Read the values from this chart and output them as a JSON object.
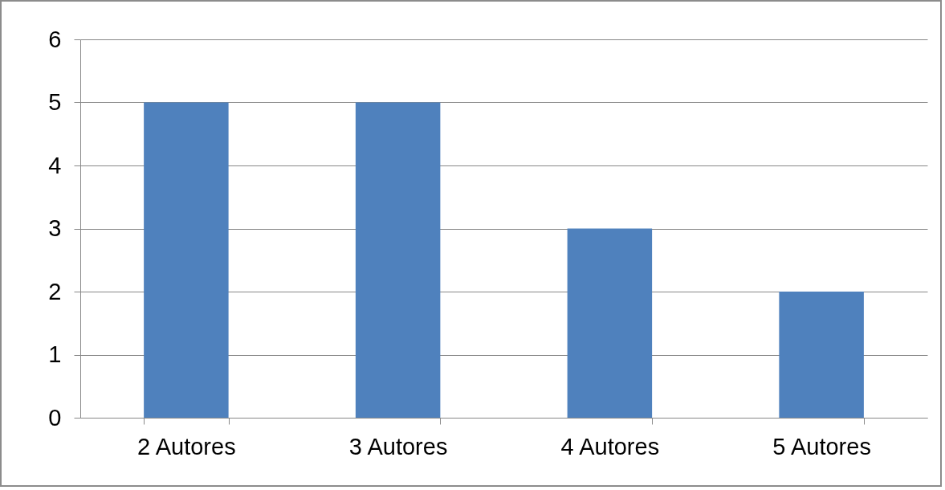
{
  "chart_data": {
    "type": "bar",
    "categories": [
      "2 Autores",
      "3 Autores",
      "4 Autores",
      "5 Autores"
    ],
    "values": [
      5,
      5,
      3,
      2
    ],
    "color": "#4f81bd",
    "ylim": [
      0,
      6
    ],
    "yticks": [
      0,
      1,
      2,
      3,
      4,
      5,
      6
    ],
    "grid": "y"
  }
}
